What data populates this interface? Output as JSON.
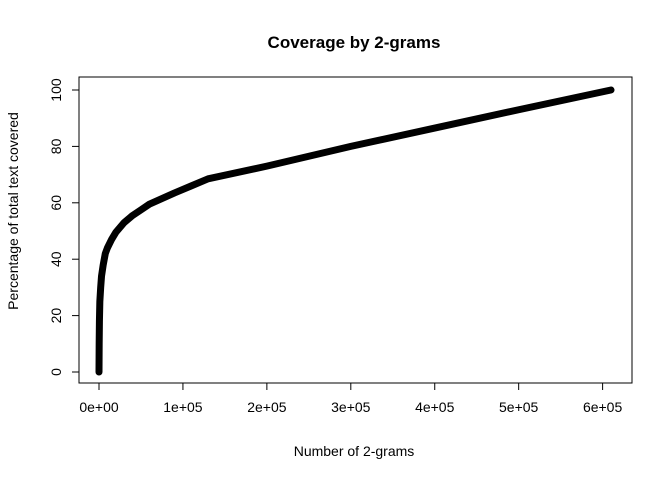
{
  "chart_data": {
    "type": "line",
    "title": "Coverage by 2-grams",
    "xlabel": "Number of 2-grams",
    "ylabel": "Percentage of total text covered",
    "xlim": [
      0,
      610000
    ],
    "ylim": [
      0,
      100
    ],
    "grid": false,
    "legend": "none",
    "line_color": "#000000",
    "x_ticks": [
      {
        "value": 0,
        "label": "0e+00"
      },
      {
        "value": 100000,
        "label": "1e+05"
      },
      {
        "value": 200000,
        "label": "2e+05"
      },
      {
        "value": 300000,
        "label": "3e+05"
      },
      {
        "value": 400000,
        "label": "4e+05"
      },
      {
        "value": 500000,
        "label": "5e+05"
      },
      {
        "value": 600000,
        "label": "6e+05"
      }
    ],
    "y_ticks": [
      {
        "value": 0,
        "label": "0"
      },
      {
        "value": 20,
        "label": "20"
      },
      {
        "value": 40,
        "label": "40"
      },
      {
        "value": 60,
        "label": "60"
      },
      {
        "value": 80,
        "label": "80"
      },
      {
        "value": 100,
        "label": "100"
      }
    ],
    "series": [
      {
        "x": [
          0,
          200,
          500,
          1000,
          2000,
          3000,
          5000,
          7500,
          10000,
          15000,
          20000,
          30000,
          40000,
          50000,
          60000,
          75000,
          90000,
          110000,
          130000,
          200000,
          300000,
          400000,
          500000,
          610000
        ],
        "y": [
          0,
          10,
          18,
          25,
          30,
          34,
          38,
          42,
          44,
          47,
          49.5,
          53,
          55.5,
          57.5,
          59.5,
          61.5,
          63.5,
          66,
          68.5,
          73,
          80,
          86.5,
          93,
          100
        ]
      }
    ]
  }
}
